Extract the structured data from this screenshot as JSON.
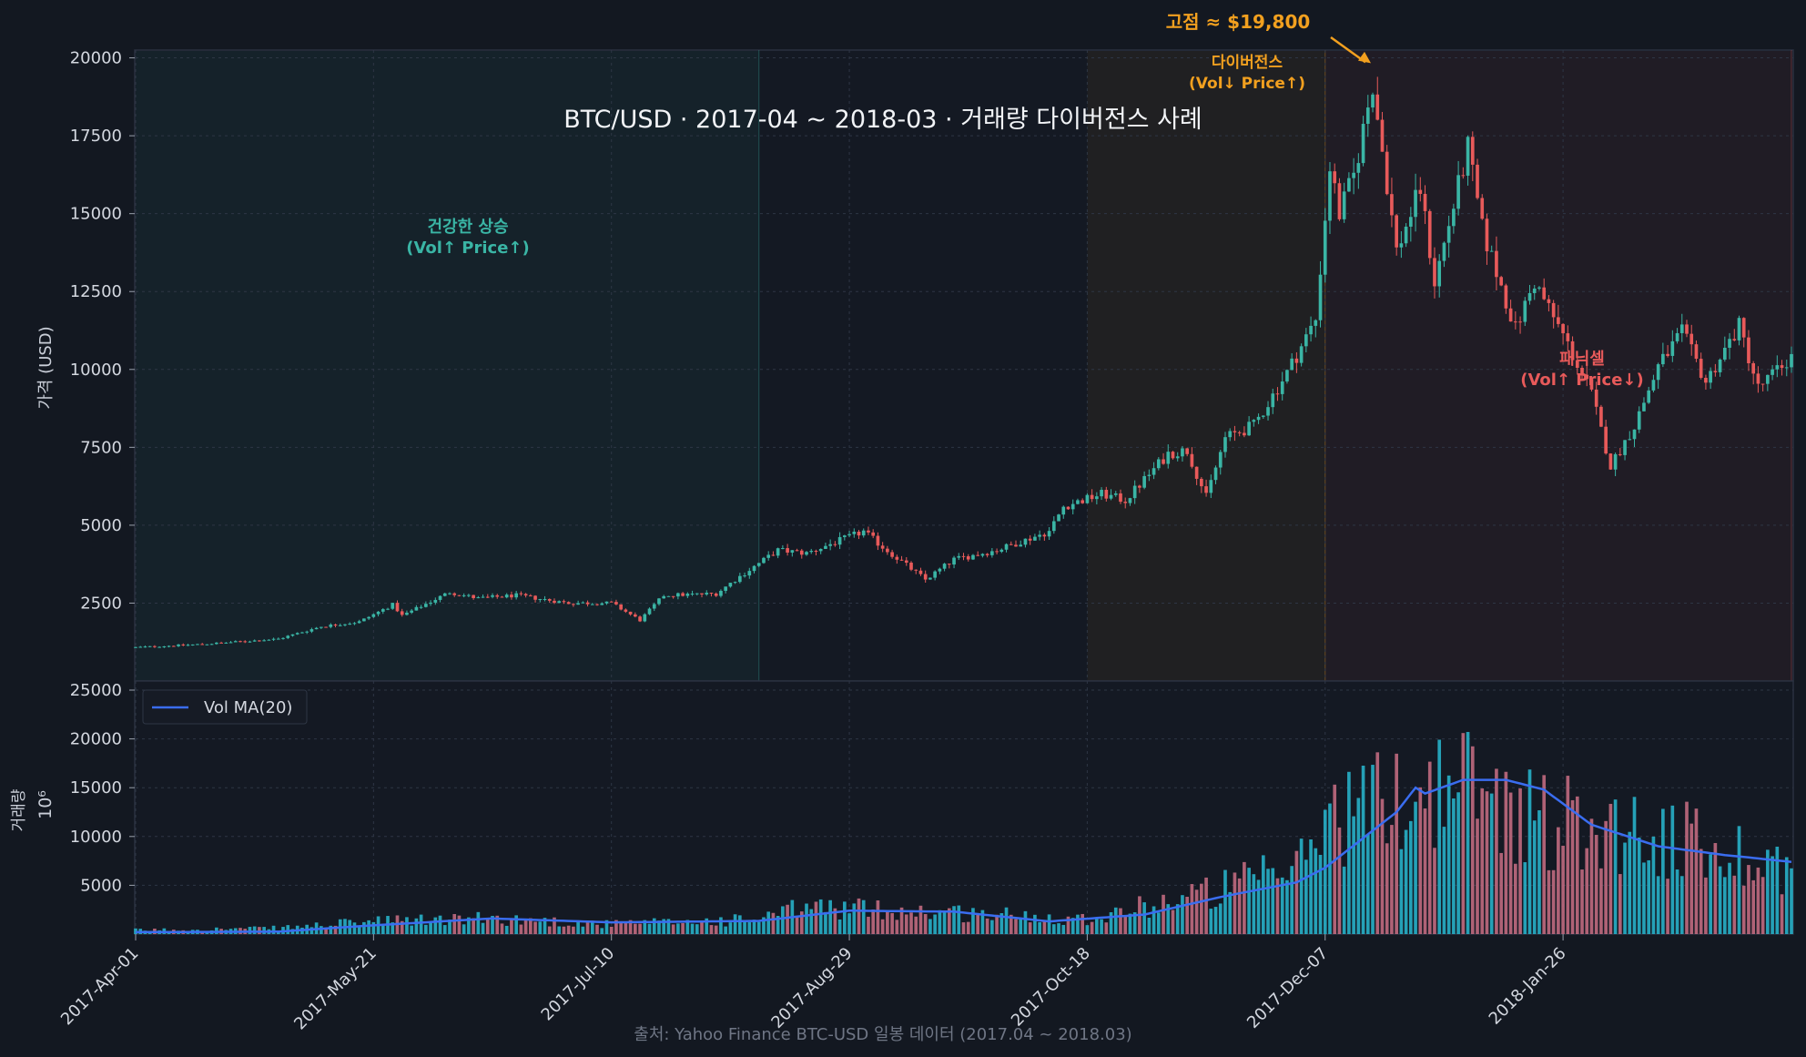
{
  "chart_data": {
    "type": "candlestick",
    "title": "BTC/USD · 2017-04 ~ 2018-03 · 거래량 다이버전스 사례",
    "source_note": "출처: Yahoo Finance BTC-USD 일봉 데이터 (2017.04 ~ 2018.03)",
    "price_panel": {
      "ylabel": "가격 (USD)",
      "yticks": [
        2500,
        5000,
        7500,
        10000,
        12500,
        15000,
        17500,
        20000
      ],
      "ylim": [
        0,
        20250
      ],
      "grid": true
    },
    "volume_panel": {
      "ylabel": "거래량",
      "ylabel_scale": "10⁶",
      "yticks": [
        5000,
        10000,
        15000,
        20000,
        25000
      ],
      "ylim": [
        0,
        25000
      ],
      "legend": {
        "label": "Vol MA(20)",
        "placement": "top-left"
      }
    },
    "x_axis": {
      "start": "2017-04-01",
      "end": "2018-03-15",
      "ticks": [
        "2017-Apr-01",
        "2017-May-21",
        "2017-Jul-10",
        "2017-Aug-29",
        "2017-Oct-18",
        "2017-Dec-07",
        "2018-Jan-26"
      ]
    },
    "regions": [
      {
        "label": "건강한 상승\n(Vol↑ Price↑)",
        "start": "2017-04-01",
        "end": "2017-08-10",
        "color": "#3ab5a5"
      },
      {
        "label": "다이버전스\n(Vol↓ Price↑)",
        "start": "2017-10-18",
        "end": "2017-12-07",
        "color": "#f2a01f"
      },
      {
        "label": "패닉셀\n(Vol↑ Price↓)",
        "start": "2017-12-07",
        "end": "2018-03-15",
        "color": "#e85a5a"
      }
    ],
    "annotations": [
      {
        "text": "고점 ≈ $19,800",
        "x": "2017-12-17",
        "y": 19800,
        "color": "#f2a01f"
      }
    ],
    "price_series": [
      {
        "date": "2017-04-01",
        "close": 1080
      },
      {
        "date": "2017-04-15",
        "close": 1180
      },
      {
        "date": "2017-05-01",
        "close": 1350
      },
      {
        "date": "2017-05-10",
        "close": 1750
      },
      {
        "date": "2017-05-18",
        "close": 1900
      },
      {
        "date": "2017-05-25",
        "close": 2450
      },
      {
        "date": "2017-05-27",
        "close": 2100
      },
      {
        "date": "2017-06-06",
        "close": 2850
      },
      {
        "date": "2017-06-12",
        "close": 2650
      },
      {
        "date": "2017-06-20",
        "close": 2750
      },
      {
        "date": "2017-07-01",
        "close": 2500
      },
      {
        "date": "2017-07-10",
        "close": 2500
      },
      {
        "date": "2017-07-16",
        "close": 1950
      },
      {
        "date": "2017-07-21",
        "close": 2750
      },
      {
        "date": "2017-08-01",
        "close": 2800
      },
      {
        "date": "2017-08-05",
        "close": 3250
      },
      {
        "date": "2017-08-14",
        "close": 4200
      },
      {
        "date": "2017-08-20",
        "close": 4100
      },
      {
        "date": "2017-09-01",
        "close": 4800
      },
      {
        "date": "2017-09-05",
        "close": 4300
      },
      {
        "date": "2017-09-14",
        "close": 3250
      },
      {
        "date": "2017-09-20",
        "close": 3900
      },
      {
        "date": "2017-09-29",
        "close": 4200
      },
      {
        "date": "2017-10-10",
        "close": 4800
      },
      {
        "date": "2017-10-13",
        "close": 5600
      },
      {
        "date": "2017-10-21",
        "close": 6000
      },
      {
        "date": "2017-10-26",
        "close": 5800
      },
      {
        "date": "2017-11-04",
        "close": 7300
      },
      {
        "date": "2017-11-08",
        "close": 7400
      },
      {
        "date": "2017-11-12",
        "close": 5900
      },
      {
        "date": "2017-11-16",
        "close": 7800
      },
      {
        "date": "2017-11-22",
        "close": 8200
      },
      {
        "date": "2017-11-29",
        "close": 9900
      },
      {
        "date": "2017-12-05",
        "close": 11600
      },
      {
        "date": "2017-12-08",
        "close": 16500
      },
      {
        "date": "2017-12-10",
        "close": 15000
      },
      {
        "date": "2017-12-13",
        "close": 16200
      },
      {
        "date": "2017-12-17",
        "close": 19200
      },
      {
        "date": "2017-12-22",
        "close": 13800
      },
      {
        "date": "2017-12-27",
        "close": 15800
      },
      {
        "date": "2017-12-30",
        "close": 12800
      },
      {
        "date": "2018-01-06",
        "close": 17100
      },
      {
        "date": "2018-01-09",
        "close": 14500
      },
      {
        "date": "2018-01-16",
        "close": 11300
      },
      {
        "date": "2018-01-20",
        "close": 12800
      },
      {
        "date": "2018-01-26",
        "close": 11100
      },
      {
        "date": "2018-02-01",
        "close": 9200
      },
      {
        "date": "2018-02-05",
        "close": 6900
      },
      {
        "date": "2018-02-10",
        "close": 8200
      },
      {
        "date": "2018-02-15",
        "close": 10100
      },
      {
        "date": "2018-02-20",
        "close": 11200
      },
      {
        "date": "2018-02-25",
        "close": 9600
      },
      {
        "date": "2018-03-04",
        "close": 11400
      },
      {
        "date": "2018-03-08",
        "close": 9400
      },
      {
        "date": "2018-03-15",
        "close": 10400
      }
    ],
    "volume_series": [
      {
        "date": "2017-04-01",
        "volume": 400
      },
      {
        "date": "2017-05-01",
        "volume": 600
      },
      {
        "date": "2017-05-21",
        "volume": 1300
      },
      {
        "date": "2017-06-15",
        "volume": 1600
      },
      {
        "date": "2017-07-10",
        "volume": 1000
      },
      {
        "date": "2017-08-10",
        "volume": 1500
      },
      {
        "date": "2017-08-20",
        "volume": 2800
      },
      {
        "date": "2017-09-15",
        "volume": 2300
      },
      {
        "date": "2017-10-18",
        "volume": 1600
      },
      {
        "date": "2017-11-10",
        "volume": 4000
      },
      {
        "date": "2017-12-01",
        "volume": 6500
      },
      {
        "date": "2017-12-07",
        "volume": 12000
      },
      {
        "date": "2017-12-22",
        "volume": 14000
      },
      {
        "date": "2018-01-05",
        "volume": 15500
      },
      {
        "date": "2018-01-20",
        "volume": 12000
      },
      {
        "date": "2018-02-06",
        "volume": 11000
      },
      {
        "date": "2018-03-15",
        "volume": 7000
      }
    ],
    "volume_ma20": [
      {
        "date": "2017-04-01",
        "value": 200
      },
      {
        "date": "2017-05-01",
        "value": 250
      },
      {
        "date": "2017-05-21",
        "value": 900
      },
      {
        "date": "2017-06-15",
        "value": 1600
      },
      {
        "date": "2017-07-10",
        "value": 1200
      },
      {
        "date": "2017-08-10",
        "value": 1350
      },
      {
        "date": "2017-08-29",
        "value": 2400
      },
      {
        "date": "2017-09-20",
        "value": 2300
      },
      {
        "date": "2017-10-10",
        "value": 1300
      },
      {
        "date": "2017-10-30",
        "value": 2000
      },
      {
        "date": "2017-11-15",
        "value": 3800
      },
      {
        "date": "2017-12-01",
        "value": 5300
      },
      {
        "date": "2017-12-07",
        "value": 6800
      },
      {
        "date": "2017-12-22",
        "value": 12500
      },
      {
        "date": "2017-12-26",
        "value": 15000
      },
      {
        "date": "2017-12-28",
        "value": 14400
      },
      {
        "date": "2018-01-05",
        "value": 15800
      },
      {
        "date": "2018-01-14",
        "value": 15800
      },
      {
        "date": "2018-01-22",
        "value": 14800
      },
      {
        "date": "2018-02-01",
        "value": 11200
      },
      {
        "date": "2018-02-15",
        "value": 9000
      },
      {
        "date": "2018-03-01",
        "value": 8100
      },
      {
        "date": "2018-03-15",
        "value": 7400
      }
    ]
  },
  "colors": {
    "background": "#131821",
    "up": "#3ab5a5",
    "down": "#e85a5a",
    "volume_up": "#27b0c8",
    "volume_down": "#c06a80",
    "ma_line": "#3a6df0",
    "annotation": "#f2a01f"
  }
}
